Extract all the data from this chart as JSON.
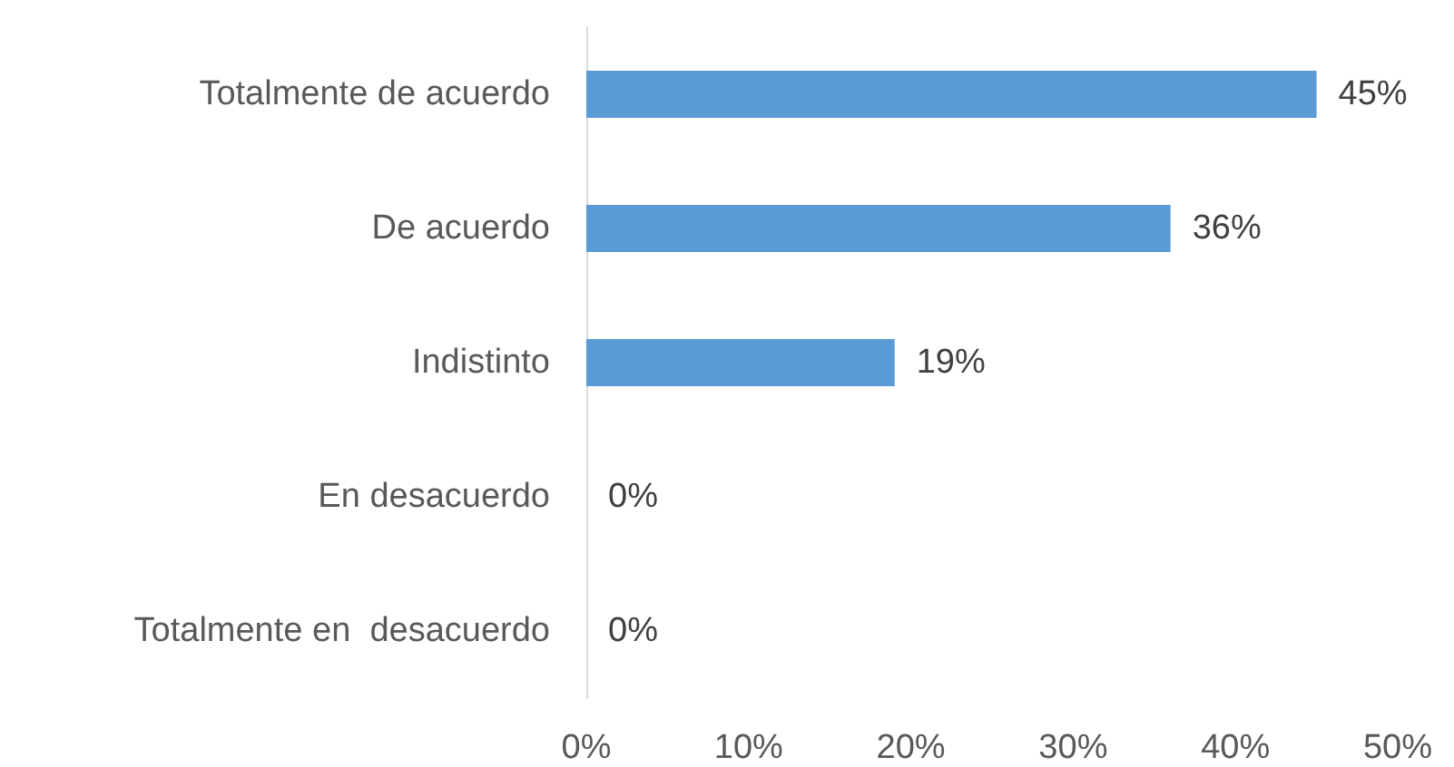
{
  "chart_data": {
    "type": "bar",
    "orientation": "horizontal",
    "categories": [
      "Totalmente de acuerdo",
      "De acuerdo",
      "Indistinto",
      "En desacuerdo",
      "Totalmente en  desacuerdo"
    ],
    "values": [
      45,
      36,
      19,
      0,
      0
    ],
    "value_labels": [
      "45%",
      "36%",
      "19%",
      "0%",
      "0%"
    ],
    "color": "#5b9bd5",
    "xlim": [
      0,
      50
    ],
    "xticks": [
      {
        "value": 0,
        "label": "0%"
      },
      {
        "value": 10,
        "label": "10%"
      },
      {
        "value": 20,
        "label": "20%"
      },
      {
        "value": 30,
        "label": "30%"
      },
      {
        "value": 40,
        "label": "40%"
      },
      {
        "value": 50,
        "label": "50%"
      }
    ],
    "grid": false
  }
}
